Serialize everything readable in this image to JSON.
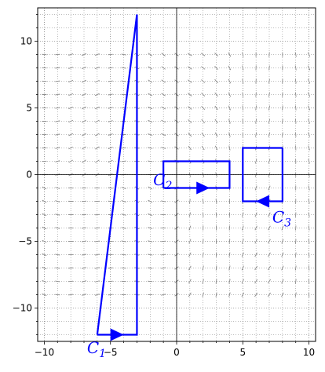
{
  "chart_data": {
    "type": "line",
    "title": "",
    "xlabel": "",
    "ylabel": "",
    "xlim": [
      -10.5,
      10.5
    ],
    "ylim": [
      -12.5,
      12.5
    ],
    "x_ticks": [
      -10,
      -5,
      0,
      5,
      10
    ],
    "x_tick_labels": [
      "−10",
      "−5",
      "0",
      "5",
      "10"
    ],
    "y_ticks": [
      -10,
      -5,
      0,
      5,
      10
    ],
    "y_tick_labels": [
      "−10",
      "−5",
      "0",
      "5",
      "10"
    ],
    "grid": "on, dotted major and minor",
    "axes_lines": "through origin",
    "colors": {
      "curve": "#0000ff",
      "field": "#888888",
      "grid": "#555555",
      "axis": "#000000"
    },
    "background_field": "short gray line segments (slope field)",
    "series": [
      {
        "name": "C_1",
        "closed": true,
        "vertices": [
          [
            -6,
            -12
          ],
          [
            -3,
            -12
          ],
          [
            -3,
            12
          ],
          [
            -6,
            -12
          ]
        ],
        "arrow_at": [
          -4.5,
          -12
        ],
        "arrow_direction": "right",
        "label_position": [
          -6,
          -12.8
        ]
      },
      {
        "name": "C_2",
        "closed": true,
        "vertices": [
          [
            -1,
            -1
          ],
          [
            4,
            -1
          ],
          [
            4,
            1
          ],
          [
            -1,
            1
          ],
          [
            -1,
            -1
          ]
        ],
        "arrow_at": [
          2,
          -1
        ],
        "arrow_direction": "right",
        "label_position": [
          -1,
          -0.2
        ]
      },
      {
        "name": "C_3",
        "closed": true,
        "vertices": [
          [
            8,
            2
          ],
          [
            5,
            2
          ],
          [
            5,
            -2
          ],
          [
            8,
            -2
          ],
          [
            8,
            2
          ]
        ],
        "arrow_at": [
          6.5,
          -2
        ],
        "arrow_direction": "left",
        "label_position": [
          8,
          -3
        ]
      }
    ]
  }
}
